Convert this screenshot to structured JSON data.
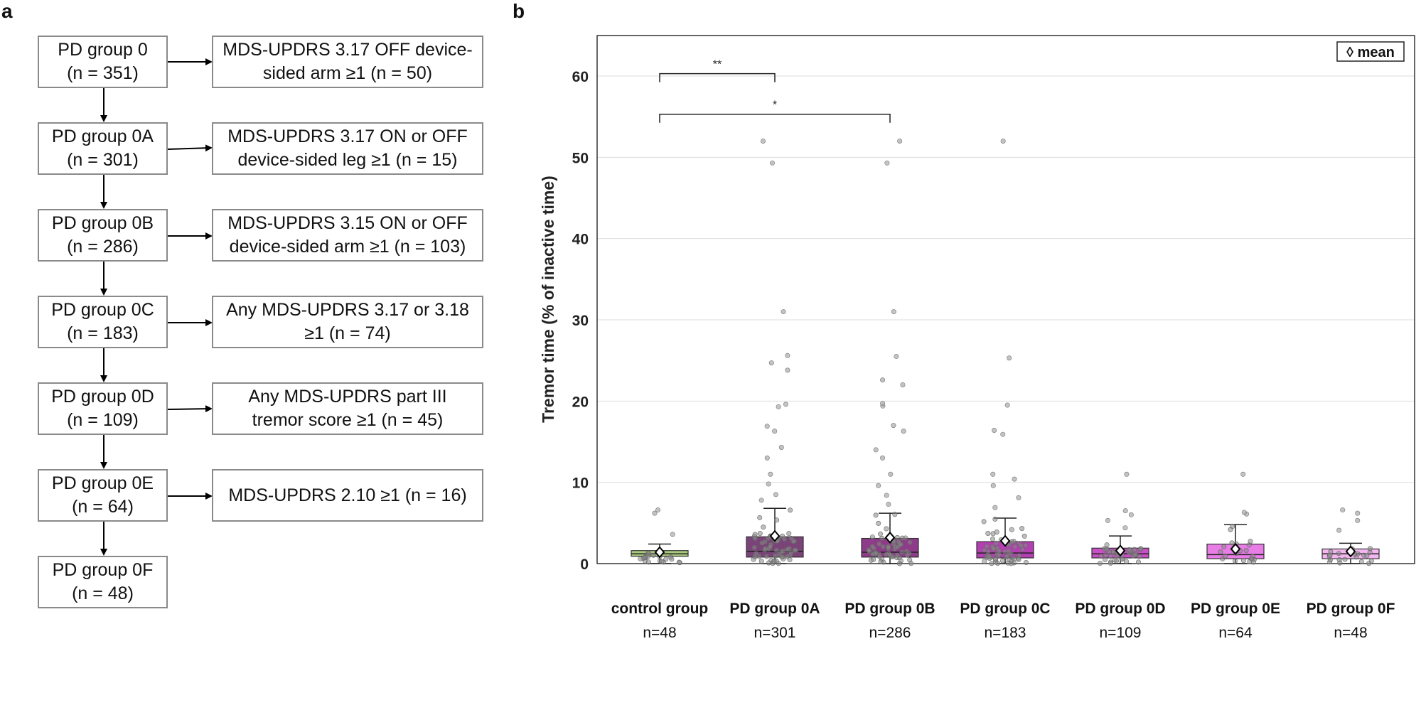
{
  "panels": {
    "a": "a",
    "b": "b"
  },
  "flowchart": {
    "groups": [
      {
        "name": "PD group 0",
        "n": "(n = 351)"
      },
      {
        "name": "PD group 0A",
        "n": "(n = 301)"
      },
      {
        "name": "PD group 0B",
        "n": "(n = 286)"
      },
      {
        "name": "PD group 0C",
        "n": "(n = 183)"
      },
      {
        "name": "PD group 0D",
        "n": "(n = 109)"
      },
      {
        "name": "PD group 0E",
        "n": "(n = 64)"
      },
      {
        "name": "PD group 0F",
        "n": "(n = 48)"
      }
    ],
    "exclusions": [
      {
        "line1": "MDS-UPDRS 3.17 OFF device-",
        "line2": "sided arm ≥1 (n = 50)"
      },
      {
        "line1": "MDS-UPDRS 3.17 ON or OFF",
        "line2": "device-sided leg ≥1 (n = 15)"
      },
      {
        "line1": "MDS-UPDRS 3.15 ON or OFF",
        "line2": "device-sided arm ≥1 (n = 103)"
      },
      {
        "line1": "Any MDS-UPDRS 3.17 or 3.18",
        "line2": "≥1 (n = 74)"
      },
      {
        "line1": "Any MDS-UPDRS part III",
        "line2": "tremor score ≥1 (n = 45)"
      },
      {
        "line1": "MDS-UPDRS 2.10 ≥1 (n = 16)",
        "line2": ""
      }
    ]
  },
  "chart_data": {
    "type": "box",
    "ylabel": "Tremor time (% of inactive time)",
    "ylim": [
      0,
      65
    ],
    "yticks": [
      0,
      10,
      20,
      30,
      40,
      50,
      60
    ],
    "grid": true,
    "legend": {
      "label": "◊ mean",
      "position": "top-right"
    },
    "categories": [
      {
        "name": "control group",
        "n": "n=48",
        "color": "#a9c97d",
        "q1": 0.9,
        "median": 1.2,
        "q3": 1.6,
        "whisker_low": 0.0,
        "whisker_high": 2.4,
        "mean": 1.4,
        "outliers": [
          3.6,
          6.2,
          6.6
        ]
      },
      {
        "name": "PD group 0A",
        "n": "n=301",
        "color": "#7a4478",
        "q1": 0.8,
        "median": 1.5,
        "q3": 3.3,
        "whisker_low": 0.0,
        "whisker_high": 6.8,
        "mean": 3.4,
        "outliers": [
          7.8,
          8.5,
          9.8,
          11.0,
          13.0,
          14.3,
          16.3,
          16.9,
          19.3,
          19.6,
          23.8,
          24.7,
          25.6,
          31.0,
          49.3,
          52.0
        ]
      },
      {
        "name": "PD group 0B",
        "n": "n=286",
        "color": "#8e3b8a",
        "q1": 0.8,
        "median": 1.4,
        "q3": 3.1,
        "whisker_low": 0.0,
        "whisker_high": 6.2,
        "mean": 3.2,
        "outliers": [
          7.3,
          8.4,
          9.6,
          11.0,
          13.0,
          14.0,
          16.3,
          17.0,
          19.4,
          19.7,
          22.0,
          22.6,
          25.5,
          31.0,
          49.3,
          52.0
        ]
      },
      {
        "name": "PD group 0C",
        "n": "n=183",
        "color": "#b43fb2",
        "q1": 0.7,
        "median": 1.3,
        "q3": 2.7,
        "whisker_low": 0.0,
        "whisker_high": 5.6,
        "mean": 2.8,
        "outliers": [
          6.9,
          8.1,
          9.6,
          10.4,
          11.0,
          15.9,
          16.4,
          19.5,
          25.3,
          52.0
        ]
      },
      {
        "name": "PD group 0D",
        "n": "n=109",
        "color": "#c94fc6",
        "q1": 0.7,
        "median": 1.2,
        "q3": 1.9,
        "whisker_low": 0.0,
        "whisker_high": 3.4,
        "mean": 1.6,
        "outliers": [
          4.4,
          5.3,
          6.0,
          6.5,
          11.0
        ]
      },
      {
        "name": "PD group 0E",
        "n": "n=64",
        "color": "#e87de6",
        "q1": 0.6,
        "median": 1.1,
        "q3": 2.4,
        "whisker_low": 0.0,
        "whisker_high": 4.8,
        "mean": 1.8,
        "outliers": [
          6.1,
          6.3,
          11.0
        ]
      },
      {
        "name": "PD group 0F",
        "n": "n=48",
        "color": "#f3b6f1",
        "q1": 0.6,
        "median": 1.2,
        "q3": 1.8,
        "whisker_low": 0.0,
        "whisker_high": 2.5,
        "mean": 1.5,
        "outliers": [
          4.1,
          5.3,
          6.2,
          6.6
        ]
      }
    ],
    "significance": [
      {
        "from": 0,
        "to": 1,
        "y": 60.3,
        "label": "**"
      },
      {
        "from": 0,
        "to": 2,
        "y": 55.3,
        "label": "*"
      }
    ]
  }
}
